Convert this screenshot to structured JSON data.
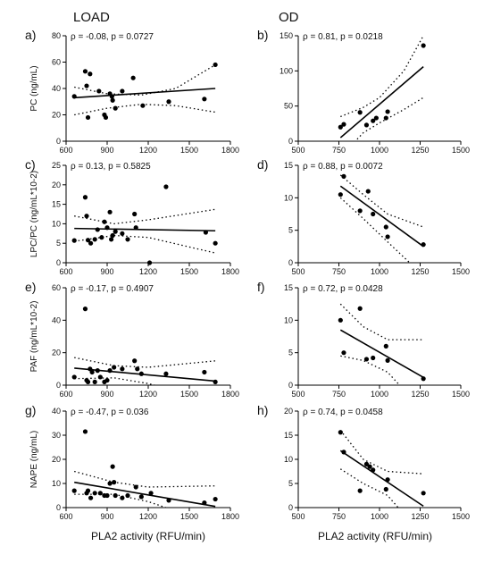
{
  "columns": [
    "LOAD",
    "OD"
  ],
  "xlabel": "PLA2 activity (RFU/min)",
  "chart_data": [
    {
      "panel": "a)",
      "type": "scatter",
      "column": "LOAD",
      "stat": "ρ = -0.08, p = 0.0727",
      "ylabel": "PC (ng/mL)",
      "xlim": [
        600,
        1800
      ],
      "ylim": [
        0,
        80
      ],
      "xticks": [
        600,
        900,
        1200,
        1500,
        1800
      ],
      "yticks": [
        0,
        20,
        40,
        60,
        80
      ],
      "points": [
        [
          660,
          34
        ],
        [
          740,
          53
        ],
        [
          750,
          42
        ],
        [
          760,
          18
        ],
        [
          775,
          51
        ],
        [
          840,
          38
        ],
        [
          880,
          20
        ],
        [
          890,
          18
        ],
        [
          920,
          36
        ],
        [
          935,
          34
        ],
        [
          940,
          31
        ],
        [
          960,
          25
        ],
        [
          1010,
          38
        ],
        [
          1090,
          48
        ],
        [
          1160,
          27
        ],
        [
          1350,
          30
        ],
        [
          1610,
          32
        ],
        [
          1690,
          58
        ]
      ],
      "fit": [
        [
          660,
          33
        ],
        [
          1690,
          40
        ]
      ],
      "band": {
        "upper": [
          [
            660,
            41
          ],
          [
            900,
            36
          ],
          [
            1150,
            35
          ],
          [
            1400,
            40
          ],
          [
            1690,
            58
          ]
        ],
        "lower": [
          [
            660,
            20
          ],
          [
            900,
            25
          ],
          [
            1150,
            28
          ],
          [
            1400,
            27
          ],
          [
            1690,
            22
          ]
        ]
      }
    },
    {
      "panel": "b)",
      "type": "scatter",
      "column": "OD",
      "stat": "ρ = 0.81, p = 0.0218",
      "ylabel": "",
      "xlim": [
        500,
        1500
      ],
      "ylim": [
        0,
        150
      ],
      "xticks": [
        500,
        750,
        1000,
        1250,
        1500
      ],
      "yticks": [
        0,
        50,
        100,
        150
      ],
      "points": [
        [
          760,
          20
        ],
        [
          780,
          24
        ],
        [
          880,
          41
        ],
        [
          920,
          23
        ],
        [
          960,
          29
        ],
        [
          980,
          33
        ],
        [
          1040,
          33
        ],
        [
          1050,
          42
        ],
        [
          1270,
          136
        ]
      ],
      "fit": [
        [
          760,
          5
        ],
        [
          1270,
          106
        ]
      ],
      "band": {
        "upper": [
          [
            760,
            35
          ],
          [
            900,
            48
          ],
          [
            1000,
            62
          ],
          [
            1150,
            100
          ],
          [
            1270,
            150
          ]
        ],
        "lower": [
          [
            760,
            -22
          ],
          [
            900,
            12
          ],
          [
            1000,
            26
          ],
          [
            1150,
            45
          ],
          [
            1270,
            62
          ]
        ]
      }
    },
    {
      "panel": "c)",
      "type": "scatter",
      "column": "LOAD",
      "stat": "ρ = 0.13, p = 0.5825",
      "ylabel": "LPC/PC (ng/mL*10-2)",
      "xlim": [
        600,
        1800
      ],
      "ylim": [
        0,
        25
      ],
      "xticks": [
        600,
        900,
        1200,
        1500,
        1800
      ],
      "yticks": [
        0,
        5,
        10,
        15,
        20,
        25
      ],
      "points": [
        [
          660,
          5.7
        ],
        [
          740,
          16.8
        ],
        [
          750,
          12
        ],
        [
          760,
          5.8
        ],
        [
          780,
          5
        ],
        [
          810,
          6
        ],
        [
          830,
          8.5
        ],
        [
          860,
          6.5
        ],
        [
          880,
          10.5
        ],
        [
          900,
          9
        ],
        [
          920,
          13
        ],
        [
          930,
          6
        ],
        [
          940,
          7
        ],
        [
          960,
          8
        ],
        [
          1010,
          7.5
        ],
        [
          1050,
          6
        ],
        [
          1100,
          12.5
        ],
        [
          1110,
          9
        ],
        [
          1210,
          0
        ],
        [
          1330,
          19.5
        ],
        [
          1620,
          7.8
        ],
        [
          1690,
          5
        ]
      ],
      "fit": [
        [
          660,
          8.8
        ],
        [
          1690,
          8.2
        ]
      ],
      "band": {
        "upper": [
          [
            660,
            12
          ],
          [
            950,
            10
          ],
          [
            1200,
            11
          ],
          [
            1690,
            13.7
          ]
        ],
        "lower": [
          [
            660,
            5.5
          ],
          [
            950,
            7
          ],
          [
            1200,
            6.5
          ],
          [
            1690,
            2.5
          ]
        ]
      }
    },
    {
      "panel": "d)",
      "type": "scatter",
      "column": "OD",
      "stat": "ρ = 0.88, p = 0.0072",
      "ylabel": "",
      "xlim": [
        500,
        1500
      ],
      "ylim": [
        0,
        15
      ],
      "xticks": [
        500,
        750,
        1000,
        1250,
        1500
      ],
      "yticks": [
        0,
        5,
        10,
        15
      ],
      "points": [
        [
          760,
          10.5
        ],
        [
          780,
          13.3
        ],
        [
          880,
          8
        ],
        [
          930,
          11
        ],
        [
          960,
          7.5
        ],
        [
          1040,
          5.5
        ],
        [
          1050,
          4
        ],
        [
          1270,
          2.8
        ]
      ],
      "fit": [
        [
          760,
          11.8
        ],
        [
          1270,
          2.5
        ]
      ],
      "band": {
        "upper": [
          [
            760,
            13.5
          ],
          [
            900,
            10.5
          ],
          [
            1050,
            7.5
          ],
          [
            1270,
            5.5
          ]
        ],
        "lower": [
          [
            760,
            10
          ],
          [
            900,
            6.8
          ],
          [
            1050,
            3.2
          ],
          [
            1270,
            -2
          ]
        ]
      }
    },
    {
      "panel": "e)",
      "type": "scatter",
      "column": "LOAD",
      "stat": "ρ = -0.17, p = 0.4907",
      "ylabel": "PAF (ng/mL*10-2)",
      "xlim": [
        600,
        1800
      ],
      "ylim": [
        0,
        60
      ],
      "xticks": [
        600,
        900,
        1200,
        1500,
        1800
      ],
      "yticks": [
        0,
        20,
        40,
        60
      ],
      "points": [
        [
          660,
          5
        ],
        [
          740,
          47
        ],
        [
          750,
          3
        ],
        [
          760,
          2
        ],
        [
          775,
          10
        ],
        [
          790,
          8
        ],
        [
          810,
          2
        ],
        [
          830,
          9
        ],
        [
          850,
          5
        ],
        [
          880,
          2
        ],
        [
          900,
          3
        ],
        [
          920,
          9
        ],
        [
          950,
          11
        ],
        [
          1010,
          10
        ],
        [
          1100,
          15
        ],
        [
          1120,
          10
        ],
        [
          1150,
          7
        ],
        [
          1330,
          7
        ],
        [
          1610,
          8
        ],
        [
          1690,
          2
        ]
      ],
      "fit": [
        [
          660,
          10.5
        ],
        [
          1690,
          2.5
        ]
      ],
      "band": {
        "upper": [
          [
            660,
            17
          ],
          [
            950,
            12
          ],
          [
            1200,
            11
          ],
          [
            1690,
            15
          ]
        ],
        "lower": [
          [
            660,
            4
          ],
          [
            950,
            4.5
          ],
          [
            1200,
            1
          ],
          [
            1690,
            -10
          ]
        ]
      }
    },
    {
      "panel": "f)",
      "type": "scatter",
      "column": "OD",
      "stat": "ρ = 0.72, p = 0.0428",
      "ylabel": "",
      "xlim": [
        500,
        1500
      ],
      "ylim": [
        0,
        15
      ],
      "xticks": [
        500,
        750,
        1000,
        1250,
        1500
      ],
      "yticks": [
        0,
        5,
        10,
        15
      ],
      "points": [
        [
          760,
          10
        ],
        [
          780,
          5
        ],
        [
          880,
          11.8
        ],
        [
          920,
          4
        ],
        [
          960,
          4.2
        ],
        [
          1040,
          6
        ],
        [
          1050,
          3.8
        ],
        [
          1270,
          1
        ]
      ],
      "fit": [
        [
          760,
          8.5
        ],
        [
          1270,
          1.2
        ]
      ],
      "band": {
        "upper": [
          [
            760,
            12.5
          ],
          [
            900,
            9
          ],
          [
            1050,
            7
          ],
          [
            1270,
            7
          ]
        ],
        "lower": [
          [
            760,
            4.5
          ],
          [
            900,
            3.8
          ],
          [
            1050,
            2
          ],
          [
            1270,
            -4
          ]
        ]
      }
    },
    {
      "panel": "g)",
      "type": "scatter",
      "column": "LOAD",
      "stat": "ρ = -0.47, p = 0.036",
      "ylabel": "NAPE (ng/mL)",
      "xlim": [
        600,
        1800
      ],
      "ylim": [
        0,
        40
      ],
      "xticks": [
        600,
        900,
        1200,
        1500,
        1800
      ],
      "yticks": [
        0,
        10,
        20,
        30,
        40
      ],
      "points": [
        [
          660,
          7
        ],
        [
          740,
          31.5
        ],
        [
          750,
          6
        ],
        [
          760,
          7
        ],
        [
          780,
          4
        ],
        [
          810,
          6
        ],
        [
          850,
          6
        ],
        [
          880,
          5
        ],
        [
          900,
          5
        ],
        [
          920,
          10
        ],
        [
          940,
          17
        ],
        [
          950,
          10.5
        ],
        [
          960,
          5
        ],
        [
          1010,
          4
        ],
        [
          1050,
          5
        ],
        [
          1110,
          8.5
        ],
        [
          1150,
          4.5
        ],
        [
          1220,
          6
        ],
        [
          1350,
          3
        ],
        [
          1610,
          2
        ],
        [
          1690,
          3.5
        ]
      ],
      "fit": [
        [
          660,
          10.5
        ],
        [
          1690,
          0.5
        ]
      ],
      "band": {
        "upper": [
          [
            660,
            15
          ],
          [
            950,
            10.5
          ],
          [
            1200,
            8.5
          ],
          [
            1690,
            9
          ]
        ],
        "lower": [
          [
            660,
            5.5
          ],
          [
            950,
            5.5
          ],
          [
            1200,
            2.5
          ],
          [
            1690,
            -7
          ]
        ]
      }
    },
    {
      "panel": "h)",
      "type": "scatter",
      "column": "OD",
      "stat": "ρ = 0.74, p = 0.0458",
      "ylabel": "",
      "xlim": [
        500,
        1500
      ],
      "ylim": [
        0,
        20
      ],
      "xticks": [
        500,
        750,
        1000,
        1250,
        1500
      ],
      "yticks": [
        0,
        5,
        10,
        15,
        20
      ],
      "points": [
        [
          760,
          15.6
        ],
        [
          780,
          11.5
        ],
        [
          880,
          3.5
        ],
        [
          920,
          9
        ],
        [
          940,
          8.5
        ],
        [
          960,
          7.8
        ],
        [
          1040,
          3.8
        ],
        [
          1050,
          5.8
        ],
        [
          1270,
          3
        ]
      ],
      "fit": [
        [
          760,
          11.8
        ],
        [
          1270,
          0.3
        ]
      ],
      "band": {
        "upper": [
          [
            760,
            16
          ],
          [
            900,
            10
          ],
          [
            1050,
            7.5
          ],
          [
            1270,
            7
          ]
        ],
        "lower": [
          [
            760,
            8
          ],
          [
            900,
            5
          ],
          [
            1050,
            2.5
          ],
          [
            1270,
            -6
          ]
        ]
      }
    }
  ]
}
